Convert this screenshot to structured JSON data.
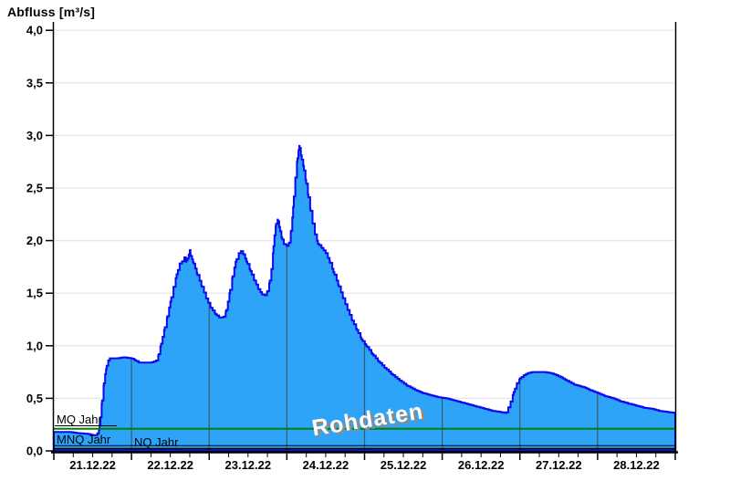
{
  "title": "Abfluss [m³/s]",
  "watermark": {
    "text": "Rohdaten"
  },
  "colors": {
    "area_fill": "#2ea4f9",
    "area_outline": "#0a0af0",
    "h_gridline": "#e8e8e8",
    "v_gridline": "#3a5a68",
    "axis": "#000000",
    "mq_line": "#008000",
    "mnq_line": "#000000",
    "nq_line": "#000000",
    "watermark_fill": "#ffffff",
    "watermark_shadow": "#8c8c8c",
    "text": "#000000"
  },
  "chart_data": {
    "type": "area",
    "title": "Abfluss [m³/s]",
    "ylabel": "Abfluss [m³/s]",
    "xlabel": "",
    "grid": "horizontal-major, vertical day lines clipped to area",
    "legend_position": "none",
    "x_axis": {
      "start_date": "21.12.22",
      "end_date": "28.12.22",
      "days_shown": 8,
      "minor_ticks_per_day": 4,
      "tick_labels": [
        "21.12.22",
        "22.12.22",
        "23.12.22",
        "24.12.22",
        "25.12.22",
        "26.12.22",
        "27.12.22",
        "28.12.22"
      ]
    },
    "y_axis": {
      "min": 0.0,
      "max": 4.0,
      "step": 0.5,
      "ticks": [
        [
          0.0,
          "0,0"
        ],
        [
          0.5,
          "0,5"
        ],
        [
          1.0,
          "1,0"
        ],
        [
          1.5,
          "1,5"
        ],
        [
          2.0,
          "2,0"
        ],
        [
          2.5,
          "2,5"
        ],
        [
          3.0,
          "3,0"
        ],
        [
          3.5,
          "3,5"
        ],
        [
          4.0,
          "4,0"
        ]
      ]
    },
    "reference_lines": [
      {
        "label": "MQ Jahr",
        "value": 0.21,
        "color": "#008000",
        "width": 2
      },
      {
        "label": "MNQ Jahr",
        "value": 0.05,
        "color": "#000000",
        "width": 1
      },
      {
        "label": "NQ Jahr",
        "value": 0.02,
        "color": "#000000",
        "width": 2
      }
    ],
    "series": [
      {
        "name": "Abfluss Rohdaten",
        "unit": "m³/s",
        "x_unit": "days since 21.12.22 00:00",
        "points": [
          [
            0.0,
            0.18
          ],
          [
            0.2,
            0.18
          ],
          [
            0.3,
            0.17
          ],
          [
            0.45,
            0.16
          ],
          [
            0.5,
            0.15
          ],
          [
            0.55,
            0.15
          ],
          [
            0.58,
            0.2
          ],
          [
            0.6,
            0.32
          ],
          [
            0.62,
            0.48
          ],
          [
            0.64,
            0.62
          ],
          [
            0.66,
            0.73
          ],
          [
            0.68,
            0.81
          ],
          [
            0.7,
            0.86
          ],
          [
            0.72,
            0.88
          ],
          [
            0.8,
            0.88
          ],
          [
            0.9,
            0.89
          ],
          [
            1.0,
            0.88
          ],
          [
            1.05,
            0.86
          ],
          [
            1.1,
            0.84
          ],
          [
            1.25,
            0.84
          ],
          [
            1.32,
            0.86
          ],
          [
            1.35,
            0.92
          ],
          [
            1.38,
            1.02
          ],
          [
            1.42,
            1.15
          ],
          [
            1.46,
            1.28
          ],
          [
            1.5,
            1.42
          ],
          [
            1.54,
            1.56
          ],
          [
            1.58,
            1.68
          ],
          [
            1.62,
            1.78
          ],
          [
            1.65,
            1.8
          ],
          [
            1.68,
            1.84
          ],
          [
            1.7,
            1.8
          ],
          [
            1.72,
            1.83
          ],
          [
            1.74,
            1.87
          ],
          [
            1.75,
            1.91
          ],
          [
            1.76,
            1.86
          ],
          [
            1.78,
            1.82
          ],
          [
            1.8,
            1.78
          ],
          [
            1.84,
            1.69
          ],
          [
            1.9,
            1.57
          ],
          [
            1.96,
            1.45
          ],
          [
            2.02,
            1.36
          ],
          [
            2.08,
            1.3
          ],
          [
            2.13,
            1.27
          ],
          [
            2.18,
            1.27
          ],
          [
            2.22,
            1.34
          ],
          [
            2.26,
            1.5
          ],
          [
            2.3,
            1.66
          ],
          [
            2.34,
            1.8
          ],
          [
            2.38,
            1.88
          ],
          [
            2.41,
            1.9
          ],
          [
            2.44,
            1.87
          ],
          [
            2.48,
            1.8
          ],
          [
            2.53,
            1.71
          ],
          [
            2.58,
            1.62
          ],
          [
            2.63,
            1.54
          ],
          [
            2.68,
            1.49
          ],
          [
            2.72,
            1.48
          ],
          [
            2.75,
            1.52
          ],
          [
            2.78,
            1.62
          ],
          [
            2.8,
            1.73
          ],
          [
            2.82,
            1.88
          ],
          [
            2.84,
            2.05
          ],
          [
            2.86,
            2.16
          ],
          [
            2.88,
            2.2
          ],
          [
            2.9,
            2.13
          ],
          [
            2.93,
            2.03
          ],
          [
            2.96,
            1.97
          ],
          [
            3.0,
            1.95
          ],
          [
            3.03,
            1.98
          ],
          [
            3.05,
            2.08
          ],
          [
            3.07,
            2.22
          ],
          [
            3.09,
            2.42
          ],
          [
            3.11,
            2.6
          ],
          [
            3.13,
            2.75
          ],
          [
            3.15,
            2.86
          ],
          [
            3.16,
            2.9
          ],
          [
            3.18,
            2.81
          ],
          [
            3.21,
            2.71
          ],
          [
            3.24,
            2.58
          ],
          [
            3.27,
            2.44
          ],
          [
            3.3,
            2.3
          ],
          [
            3.33,
            2.17
          ],
          [
            3.36,
            2.06
          ],
          [
            3.4,
            1.97
          ],
          [
            3.45,
            1.93
          ],
          [
            3.5,
            1.88
          ],
          [
            3.55,
            1.8
          ],
          [
            3.6,
            1.7
          ],
          [
            3.66,
            1.58
          ],
          [
            3.72,
            1.46
          ],
          [
            3.78,
            1.34
          ],
          [
            3.84,
            1.24
          ],
          [
            3.9,
            1.15
          ],
          [
            3.96,
            1.06
          ],
          [
            4.02,
            1.0
          ],
          [
            4.1,
            0.92
          ],
          [
            4.18,
            0.85
          ],
          [
            4.26,
            0.79
          ],
          [
            4.35,
            0.73
          ],
          [
            4.45,
            0.67
          ],
          [
            4.55,
            0.62
          ],
          [
            4.65,
            0.58
          ],
          [
            4.75,
            0.55
          ],
          [
            4.85,
            0.53
          ],
          [
            4.95,
            0.51
          ],
          [
            5.05,
            0.5
          ],
          [
            5.15,
            0.48
          ],
          [
            5.25,
            0.46
          ],
          [
            5.35,
            0.44
          ],
          [
            5.45,
            0.42
          ],
          [
            5.55,
            0.4
          ],
          [
            5.65,
            0.38
          ],
          [
            5.75,
            0.37
          ],
          [
            5.82,
            0.36
          ],
          [
            5.85,
            0.41
          ],
          [
            5.88,
            0.47
          ],
          [
            5.92,
            0.56
          ],
          [
            5.96,
            0.64
          ],
          [
            6.0,
            0.69
          ],
          [
            6.05,
            0.72
          ],
          [
            6.1,
            0.74
          ],
          [
            6.16,
            0.75
          ],
          [
            6.3,
            0.75
          ],
          [
            6.4,
            0.74
          ],
          [
            6.5,
            0.71
          ],
          [
            6.6,
            0.67
          ],
          [
            6.7,
            0.63
          ],
          [
            6.8,
            0.61
          ],
          [
            6.9,
            0.58
          ],
          [
            7.0,
            0.55
          ],
          [
            7.1,
            0.52
          ],
          [
            7.2,
            0.5
          ],
          [
            7.3,
            0.47
          ],
          [
            7.4,
            0.45
          ],
          [
            7.5,
            0.43
          ],
          [
            7.6,
            0.41
          ],
          [
            7.7,
            0.4
          ],
          [
            7.8,
            0.38
          ],
          [
            7.9,
            0.37
          ],
          [
            8.0,
            0.36
          ]
        ]
      }
    ],
    "annotations": [
      {
        "text": "Rohdaten",
        "style": "watermark, white with gray shadow, rotated"
      }
    ]
  }
}
